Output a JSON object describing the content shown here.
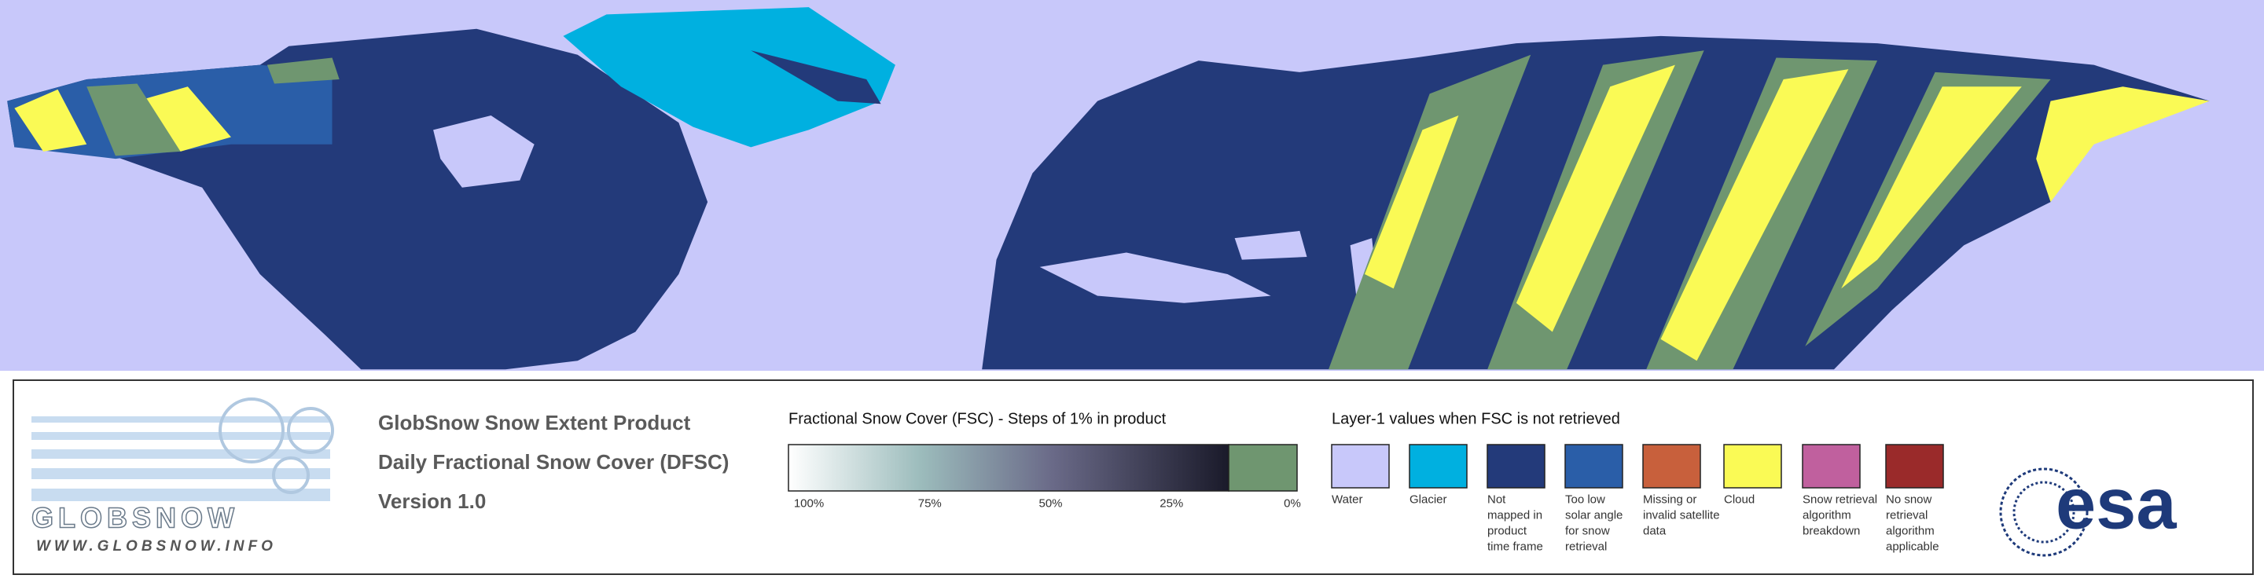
{
  "logo": {
    "name": "GLOBSNOW",
    "url": "WWW.GLOBSNOW.INFO"
  },
  "title": {
    "lines": [
      "GlobSnow Snow Extent Product",
      "Daily Fractional Snow Cover (DFSC)",
      "Version 1.0"
    ]
  },
  "fsc_scale": {
    "title": "Fractional Snow Cover (FSC) - Steps of 1% in product",
    "labels": [
      "100%",
      "75%",
      "50%",
      "25%",
      "0%"
    ],
    "snow_free_color": "#6f9670"
  },
  "layer1_legend": {
    "title": "Layer-1 values when FSC is not retrieved",
    "items": [
      {
        "color": "#c8c8fa",
        "label": [
          "Water"
        ]
      },
      {
        "color": "#00b0e0",
        "label": [
          "Glacier"
        ]
      },
      {
        "color": "#233a7a",
        "label": [
          "Not",
          "mapped in",
          "product",
          "time frame"
        ]
      },
      {
        "color": "#2a5ea8",
        "label": [
          "Too low",
          "solar angle",
          "for snow",
          "retrieval"
        ]
      },
      {
        "color": "#c8603c",
        "label": [
          "Missing or",
          "invalid satellite",
          "data"
        ]
      },
      {
        "color": "#fafa55",
        "label": [
          "Cloud"
        ]
      },
      {
        "color": "#c0609e",
        "label": [
          "Snow retrieval",
          "algorithm",
          "breakdown"
        ]
      },
      {
        "color": "#9a2a2a",
        "label": [
          "No snow",
          "retrieval",
          "algorithm",
          "applicable"
        ]
      }
    ]
  },
  "esa_logo": "esa"
}
